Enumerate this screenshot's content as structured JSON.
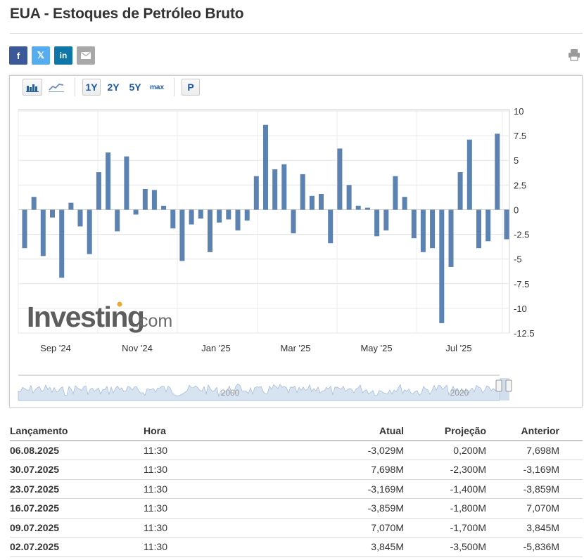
{
  "page": {
    "title": "EUA - Estoques de Petróleo Bruto"
  },
  "share": {
    "facebook": "f",
    "twitter": "𝕏",
    "linkedin": "in",
    "email_icon": "envelope-icon",
    "print_icon": "printer-icon"
  },
  "toolbar": {
    "bar_chart_icon": "bar-chart-icon",
    "line_chart_icon": "line-chart-icon",
    "range_1y": "1Y",
    "range_2y": "2Y",
    "range_5y": "5Y",
    "range_max": "max",
    "projection": "P",
    "active_range": "1Y"
  },
  "watermark": {
    "brand": "Investing",
    "suffix": ".com"
  },
  "navigator": {
    "labels": [
      "2000",
      "2020"
    ]
  },
  "chart_data": {
    "type": "bar",
    "color": "#5b82b0",
    "y_ticks": [
      10,
      7.5,
      5,
      2.5,
      0,
      -2.5,
      -5,
      -7.5,
      -10,
      -12.5
    ],
    "y_tick_labels": [
      "10",
      "7.5",
      "5",
      "2.5",
      "0",
      "-2.5",
      "-5",
      "-7.5",
      "-10",
      "-12.5"
    ],
    "ylim": [
      -12.5,
      10
    ],
    "x_tick_labels": [
      "Sep '24",
      "Nov '24",
      "Jan '25",
      "Mar '25",
      "May '25",
      "Jul '25"
    ],
    "values": [
      -3.9,
      1.3,
      -4.7,
      -0.8,
      -6.9,
      0.7,
      -1.7,
      -4.5,
      3.8,
      5.8,
      -2.2,
      5.4,
      -0.5,
      2.1,
      2.0,
      0.4,
      -1.9,
      -5.2,
      -1.5,
      -0.9,
      -4.3,
      -1.3,
      -1.0,
      -2.1,
      -1.1,
      3.4,
      8.6,
      4.1,
      4.6,
      -2.4,
      3.6,
      1.4,
      1.6,
      -3.4,
      6.2,
      2.5,
      0.4,
      0.2,
      -2.7,
      -2.1,
      3.4,
      1.3,
      -2.9,
      -4.3,
      -3.9,
      -11.5,
      -5.8,
      3.8,
      7.1,
      -3.9,
      -3.2,
      7.7,
      -3.0
    ],
    "grid": true,
    "legend": "none"
  },
  "table": {
    "headers": {
      "lancamento": "Lançamento",
      "hora": "Hora",
      "atual": "Atual",
      "projecao": "Projeção",
      "anterior": "Anterior"
    },
    "rows": [
      {
        "date": "06.08.2025",
        "time": "11:30",
        "actual": "-3,029M",
        "trend": "down",
        "forecast": "0,200M",
        "previous": "7,698M"
      },
      {
        "date": "30.07.2025",
        "time": "11:30",
        "actual": "7,698M",
        "trend": "up",
        "forecast": "-2,300M",
        "previous": "-3,169M"
      },
      {
        "date": "23.07.2025",
        "time": "11:30",
        "actual": "-3,169M",
        "trend": "down",
        "forecast": "-1,400M",
        "previous": "-3,859M"
      },
      {
        "date": "16.07.2025",
        "time": "11:30",
        "actual": "-3,859M",
        "trend": "down",
        "forecast": "-1,800M",
        "previous": "7,070M"
      },
      {
        "date": "09.07.2025",
        "time": "11:30",
        "actual": "7,070M",
        "trend": "up",
        "forecast": "-1,700M",
        "previous": "3,845M"
      },
      {
        "date": "02.07.2025",
        "time": "11:30",
        "actual": "3,845M",
        "trend": "up",
        "forecast": "-3,500M",
        "previous": "-5,836M"
      }
    ]
  }
}
